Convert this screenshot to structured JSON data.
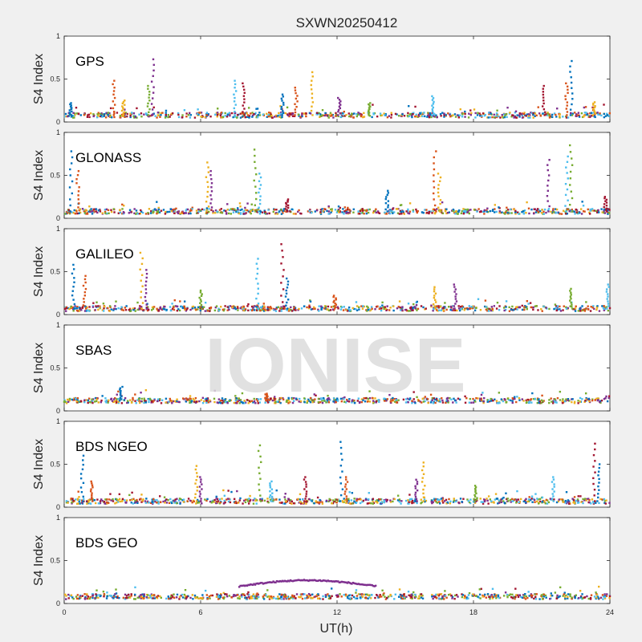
{
  "chart_data": {
    "type": "scatter",
    "title": "SXWN20250412",
    "xlabel": "UT(h)",
    "xlim": [
      0,
      24
    ],
    "xticks": [
      "0",
      "6",
      "12",
      "18",
      "24"
    ],
    "watermark": "IONISE",
    "series_colors": [
      "#0072BD",
      "#D95319",
      "#EDB120",
      "#7E2F8E",
      "#77AC30",
      "#4DBEEE",
      "#A2142F"
    ],
    "panels": [
      {
        "label": "GPS",
        "ylabel": "S4 Index",
        "ylim": [
          0,
          1
        ],
        "yticks": [
          "0",
          "0.5",
          "1"
        ],
        "baseline": 0.08,
        "spikes": [
          {
            "x": 0.3,
            "y": 0.22
          },
          {
            "x": 2.2,
            "y": 0.48
          },
          {
            "x": 2.6,
            "y": 0.25
          },
          {
            "x": 3.9,
            "y": 0.73
          },
          {
            "x": 3.7,
            "y": 0.42
          },
          {
            "x": 7.5,
            "y": 0.48
          },
          {
            "x": 7.9,
            "y": 0.45
          },
          {
            "x": 9.6,
            "y": 0.32
          },
          {
            "x": 10.2,
            "y": 0.4
          },
          {
            "x": 10.9,
            "y": 0.58
          },
          {
            "x": 12.1,
            "y": 0.28
          },
          {
            "x": 13.4,
            "y": 0.22
          },
          {
            "x": 16.2,
            "y": 0.3
          },
          {
            "x": 21.1,
            "y": 0.42
          },
          {
            "x": 22.3,
            "y": 0.71
          },
          {
            "x": 22.1,
            "y": 0.45
          },
          {
            "x": 23.3,
            "y": 0.23
          }
        ]
      },
      {
        "label": "GLONASS",
        "ylabel": "S4 Index",
        "ylim": [
          0,
          1
        ],
        "yticks": [
          "0",
          "0.5",
          "1"
        ],
        "baseline": 0.08,
        "spikes": [
          {
            "x": 0.3,
            "y": 0.78
          },
          {
            "x": 0.6,
            "y": 0.55
          },
          {
            "x": 6.3,
            "y": 0.65
          },
          {
            "x": 6.5,
            "y": 0.55
          },
          {
            "x": 8.4,
            "y": 0.8
          },
          {
            "x": 8.6,
            "y": 0.52
          },
          {
            "x": 9.8,
            "y": 0.22
          },
          {
            "x": 14.2,
            "y": 0.32
          },
          {
            "x": 16.3,
            "y": 0.78
          },
          {
            "x": 16.5,
            "y": 0.52
          },
          {
            "x": 21.3,
            "y": 0.68
          },
          {
            "x": 22.3,
            "y": 0.85
          },
          {
            "x": 22.1,
            "y": 0.72
          },
          {
            "x": 23.8,
            "y": 0.25
          }
        ]
      },
      {
        "label": "GALILEO",
        "ylabel": "S4 Index",
        "ylim": [
          0,
          1
        ],
        "yticks": [
          "0",
          "0.5",
          "1"
        ],
        "baseline": 0.07,
        "spikes": [
          {
            "x": 0.4,
            "y": 0.58
          },
          {
            "x": 0.9,
            "y": 0.45
          },
          {
            "x": 3.4,
            "y": 0.72
          },
          {
            "x": 3.6,
            "y": 0.52
          },
          {
            "x": 6.0,
            "y": 0.28
          },
          {
            "x": 8.5,
            "y": 0.65
          },
          {
            "x": 9.6,
            "y": 0.82
          },
          {
            "x": 9.8,
            "y": 0.42
          },
          {
            "x": 11.9,
            "y": 0.22
          },
          {
            "x": 16.3,
            "y": 0.32
          },
          {
            "x": 17.2,
            "y": 0.35
          },
          {
            "x": 22.3,
            "y": 0.3
          },
          {
            "x": 23.9,
            "y": 0.35
          }
        ]
      },
      {
        "label": "SBAS",
        "ylabel": "S4 Index",
        "ylim": [
          0,
          1
        ],
        "yticks": [
          "0",
          "0.5",
          "1"
        ],
        "baseline": 0.12,
        "spikes": [
          {
            "x": 2.5,
            "y": 0.28
          },
          {
            "x": 8.9,
            "y": 0.2
          }
        ]
      },
      {
        "label": "BDS NGEO",
        "ylabel": "S4 Index",
        "ylim": [
          0,
          1
        ],
        "yticks": [
          "0",
          "0.5",
          "1"
        ],
        "baseline": 0.07,
        "spikes": [
          {
            "x": 0.8,
            "y": 0.6
          },
          {
            "x": 1.2,
            "y": 0.3
          },
          {
            "x": 5.8,
            "y": 0.48
          },
          {
            "x": 6.0,
            "y": 0.35
          },
          {
            "x": 8.6,
            "y": 0.72
          },
          {
            "x": 9.1,
            "y": 0.3
          },
          {
            "x": 10.6,
            "y": 0.35
          },
          {
            "x": 12.2,
            "y": 0.76
          },
          {
            "x": 12.4,
            "y": 0.35
          },
          {
            "x": 15.8,
            "y": 0.52
          },
          {
            "x": 15.5,
            "y": 0.32
          },
          {
            "x": 18.1,
            "y": 0.25
          },
          {
            "x": 21.5,
            "y": 0.35
          },
          {
            "x": 23.3,
            "y": 0.74
          },
          {
            "x": 23.5,
            "y": 0.5
          }
        ]
      },
      {
        "label": "BDS GEO",
        "ylabel": "S4 Index",
        "ylim": [
          0,
          1
        ],
        "yticks": [
          "0",
          "0.5",
          "1"
        ],
        "baseline": 0.08,
        "arc": {
          "x_start": 7.7,
          "x_end": 13.7,
          "y_peak": 0.27,
          "y_edge": 0.2
        },
        "spikes": []
      }
    ]
  }
}
